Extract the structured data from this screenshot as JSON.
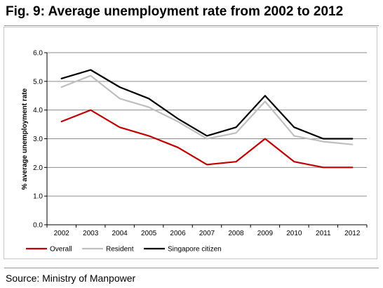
{
  "figure": {
    "title": "Fig. 9: Average unemployment rate from 2002 to 2012",
    "source": "Source: Ministry of Manpower"
  },
  "chart_data": {
    "type": "line",
    "title": "Fig. 9: Average unemployment rate from 2002 to 2012",
    "xlabel": "",
    "ylabel": "% average unemployment rate",
    "x": [
      "2002",
      "2003",
      "2004",
      "2005",
      "2006",
      "2007",
      "2008",
      "2009",
      "2010",
      "2011",
      "2012"
    ],
    "ylim": [
      0,
      6
    ],
    "yticks": [
      "0.0",
      "1.0",
      "2.0",
      "3.0",
      "4.0",
      "5.0",
      "6.0"
    ],
    "grid": "horizontal",
    "legend": "bottom",
    "series": [
      {
        "name": "Overall",
        "color": "#c00000",
        "values": [
          3.6,
          4.0,
          3.4,
          3.1,
          2.7,
          2.1,
          2.2,
          3.0,
          2.2,
          2.0,
          2.0
        ]
      },
      {
        "name": "Resident",
        "color": "#bfbfbf",
        "values": [
          4.8,
          5.2,
          4.4,
          4.1,
          3.6,
          3.0,
          3.2,
          4.3,
          3.1,
          2.9,
          2.8
        ]
      },
      {
        "name": "Singapore citizen",
        "color": "#000000",
        "values": [
          5.1,
          5.4,
          4.8,
          4.4,
          3.7,
          3.1,
          3.4,
          4.5,
          3.4,
          3.0,
          3.0
        ]
      }
    ]
  }
}
